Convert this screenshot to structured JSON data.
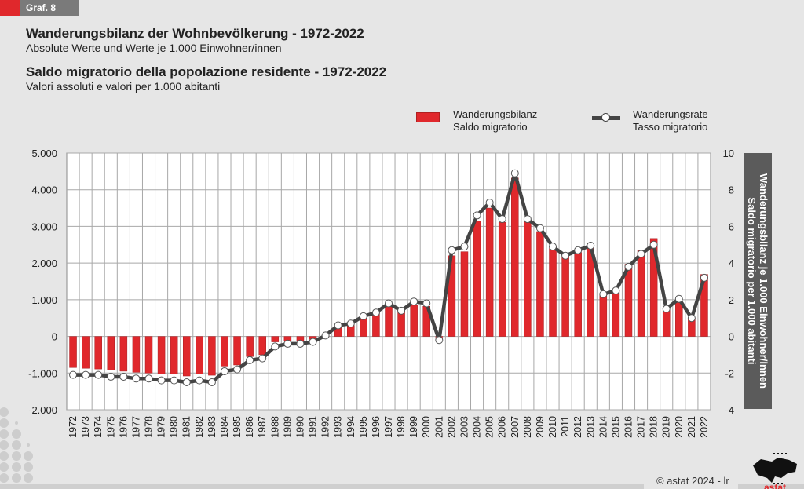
{
  "badge": {
    "label": "Graf. 8"
  },
  "titles": {
    "de_title": "Wanderungsbilanz der Wohnbevölkerung - 1972-2022",
    "de_subtitle": "Absolute Werte und Werte je 1.000 Einwohner/innen",
    "it_title": "Saldo migratorio della popolazione residente - 1972-2022",
    "it_subtitle": "Valori assoluti e valori per 1.000 abitanti"
  },
  "legend": {
    "bars_de": "Wanderungsbilanz",
    "bars_it": "Saldo migratorio",
    "line_de": "Wanderungsrate",
    "line_it": "Tasso migratorio"
  },
  "right_axis_label": {
    "de": "Wanderungsbilanz je 1.000 Einwohner/innen",
    "it": "Saldo migratorio per 1.000 abitanti"
  },
  "footer": {
    "copyright": "© astat 2024 - lr",
    "logo_text": "astat"
  },
  "colors": {
    "bar": "#e0282c",
    "line": "#444444",
    "marker": "#ffffff",
    "badge_red": "#e0282c",
    "badge_gray": "#7a7a7a",
    "side_box": "#5b5b5b"
  },
  "chart_data": {
    "type": "bar+line",
    "title": "Wanderungsbilanz der Wohnbevölkerung - 1972-2022",
    "categories": [
      "1972",
      "1973",
      "1974",
      "1975",
      "1976",
      "1977",
      "1978",
      "1979",
      "1980",
      "1981",
      "1982",
      "1983",
      "1984",
      "1985",
      "1986",
      "1987",
      "1988",
      "1989",
      "1990",
      "1991",
      "1992",
      "1993",
      "1994",
      "1995",
      "1996",
      "1997",
      "1998",
      "1999",
      "2000",
      "2001",
      "2002",
      "2003",
      "2004",
      "2005",
      "2006",
      "2007",
      "2008",
      "2009",
      "2010",
      "2011",
      "2012",
      "2013",
      "2014",
      "2015",
      "2016",
      "2017",
      "2018",
      "2019",
      "2020",
      "2021",
      "2022"
    ],
    "series": [
      {
        "name": "Wanderungsbilanz / Saldo migratorio",
        "type": "bar",
        "axis": "left",
        "values": [
          -850,
          -870,
          -890,
          -920,
          -950,
          -980,
          -1000,
          -1020,
          -1020,
          -1080,
          -1030,
          -1060,
          -810,
          -780,
          -550,
          -500,
          -150,
          -130,
          -120,
          -80,
          0,
          300,
          300,
          520,
          650,
          820,
          680,
          850,
          820,
          -20,
          2200,
          2310,
          3150,
          3500,
          3110,
          4320,
          3130,
          2860,
          2400,
          2150,
          2290,
          2530,
          1150,
          1220,
          1970,
          2360,
          2670,
          730,
          920,
          480,
          1690
        ]
      },
      {
        "name": "Wanderungsrate / Tasso migratorio",
        "type": "line",
        "axis": "right",
        "values": [
          -2.1,
          -2.1,
          -2.1,
          -2.2,
          -2.2,
          -2.3,
          -2.3,
          -2.4,
          -2.4,
          -2.5,
          -2.4,
          -2.5,
          -1.9,
          -1.8,
          -1.3,
          -1.2,
          -0.55,
          -0.4,
          -0.4,
          -0.3,
          0.05,
          0.6,
          0.7,
          1.1,
          1.3,
          1.8,
          1.4,
          1.9,
          1.8,
          -0.2,
          4.7,
          4.9,
          6.6,
          7.3,
          6.4,
          8.9,
          6.4,
          5.9,
          4.9,
          4.4,
          4.7,
          4.95,
          2.3,
          2.5,
          3.8,
          4.5,
          5.0,
          1.5,
          2.05,
          1.0,
          3.2
        ]
      }
    ],
    "y_left": {
      "min": -2000,
      "max": 5000,
      "ticks": [
        "5.000",
        "4.000",
        "3.000",
        "2.000",
        "1.000",
        "0",
        "-1.000",
        "-2.000"
      ],
      "tick_values": [
        5000,
        4000,
        3000,
        2000,
        1000,
        0,
        -1000,
        -2000
      ]
    },
    "y_right": {
      "min": -4,
      "max": 10,
      "ticks": [
        "10",
        "8",
        "6",
        "4",
        "2",
        "0",
        "-2",
        "-4"
      ],
      "tick_values": [
        10,
        8,
        6,
        4,
        2,
        0,
        -2,
        -4
      ]
    },
    "grid": true,
    "legend_position": "top-right"
  }
}
